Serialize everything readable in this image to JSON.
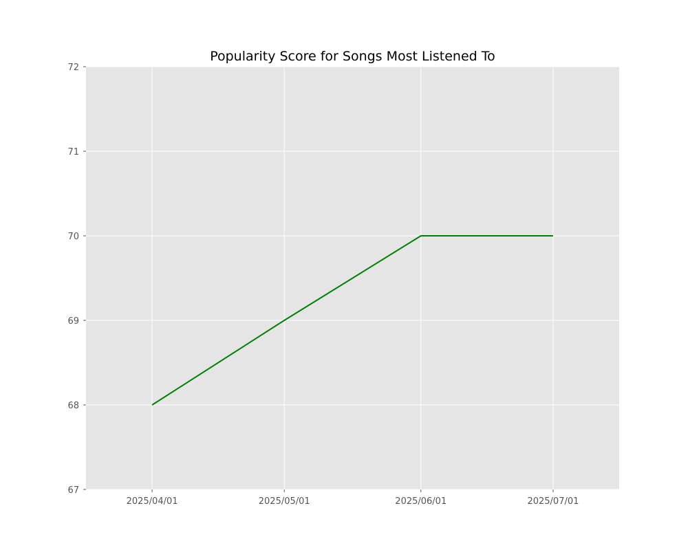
{
  "chart_data": {
    "type": "line",
    "title": "Popularity Score for Songs Most Listened To",
    "xlabel": "",
    "ylabel": "",
    "x": [
      "2025/04/01",
      "2025/05/01",
      "2025/06/01",
      "2025/07/01"
    ],
    "series": [
      {
        "values": [
          68,
          69,
          70,
          70
        ],
        "color": "#008000"
      }
    ],
    "x_scale": "date",
    "xlim": [
      "2025/03/17",
      "2025/07/16"
    ],
    "ylim": [
      67,
      72
    ],
    "y_ticks": [
      67,
      68,
      69,
      70,
      71,
      72
    ],
    "x_ticks": [
      "2025/04/01",
      "2025/05/01",
      "2025/06/01",
      "2025/07/01"
    ],
    "grid": true,
    "legend": "none",
    "colors": {
      "plot_background": "#e5e5e5",
      "grid": "#ffffff",
      "tick_label": "#555555",
      "title": "#000000"
    }
  }
}
